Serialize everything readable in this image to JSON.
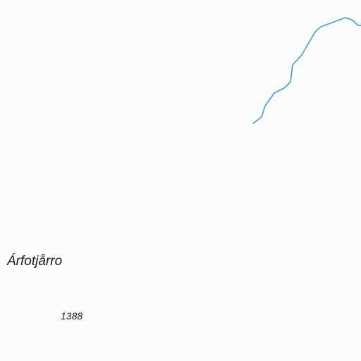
{
  "map": {
    "place_name": "Árfotjårro",
    "elevation": "1388",
    "colors": {
      "background": "#fcfcfc",
      "stream": "#3f9fdc",
      "text": "#1a1a1a"
    }
  }
}
